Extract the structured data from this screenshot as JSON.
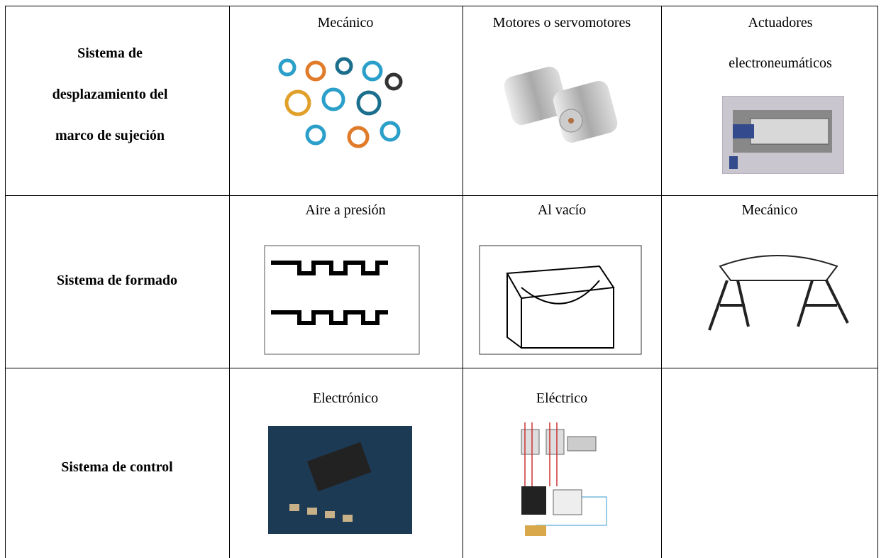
{
  "table": {
    "rows": [
      {
        "label": "Sistema de desplazamiento del marco de sujeción",
        "options": [
          "Mecánico",
          "Motores o servomotores",
          "Actuadores electroneumáticos"
        ]
      },
      {
        "label": "Sistema de formado",
        "options": [
          "Aire a presión",
          "Al vacío",
          "Mecánico"
        ]
      },
      {
        "label": "Sistema de control",
        "options": [
          "Electrónico",
          "Eléctrico"
        ]
      }
    ]
  }
}
